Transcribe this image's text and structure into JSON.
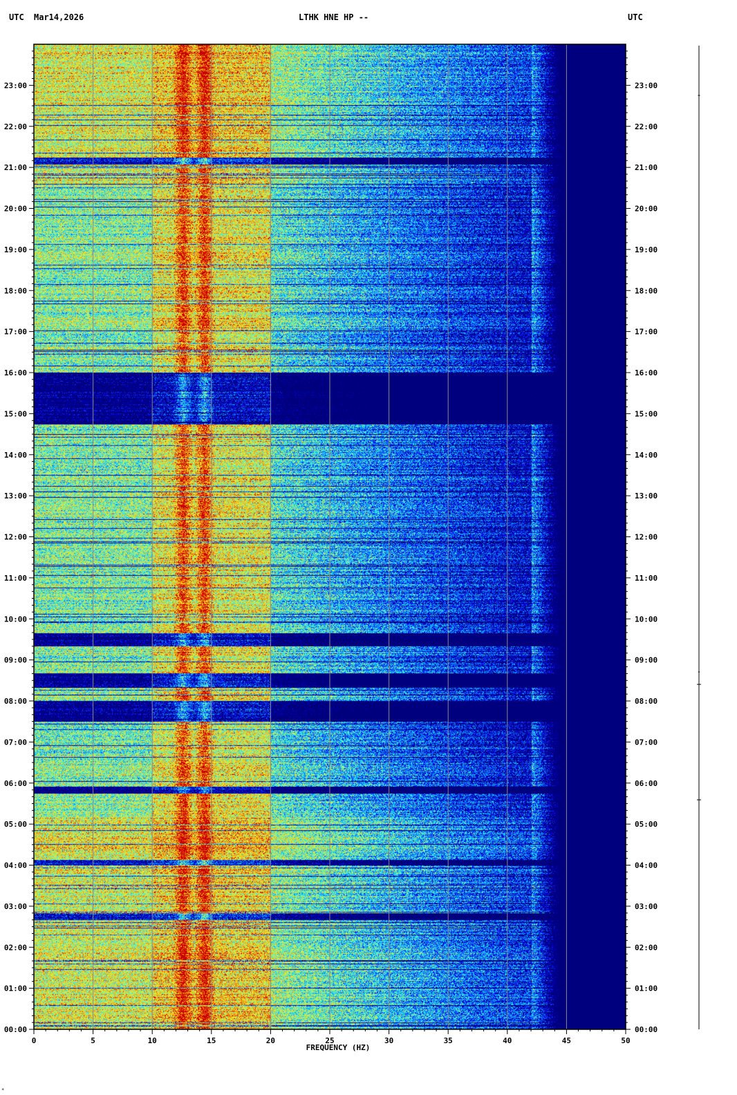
{
  "header": {
    "left_tz": "UTC",
    "date": "Mar14,2026",
    "station": "LTHK HNE HP --",
    "right_tz": "UTC"
  },
  "corner_mark": "*",
  "chart_data": {
    "type": "heatmap",
    "title": "LTHK HNE HP --",
    "xlabel": "FREQUENCY (HZ)",
    "ylabel": "",
    "xlim": [
      0,
      50
    ],
    "x_ticks": [
      0,
      5,
      10,
      15,
      20,
      25,
      30,
      35,
      40,
      45,
      50
    ],
    "y_ticks": [
      "00:00",
      "01:00",
      "02:00",
      "03:00",
      "04:00",
      "05:00",
      "06:00",
      "07:00",
      "08:00",
      "09:00",
      "10:00",
      "11:00",
      "12:00",
      "13:00",
      "14:00",
      "15:00",
      "16:00",
      "17:00",
      "18:00",
      "19:00",
      "20:00",
      "21:00",
      "22:00",
      "23:00"
    ],
    "ylim_hours": [
      0,
      24
    ],
    "grid": true,
    "colormap": [
      "#00007f",
      "#0000cc",
      "#1030ff",
      "#00a0ff",
      "#30e0f0",
      "#80f0a0",
      "#d8f040",
      "#f0d020",
      "#ff8000",
      "#c80000"
    ],
    "energy_rolloff_hz": 42,
    "spectral_lines_hz": [
      12.6,
      14.4
    ],
    "quiet_intervals_utc": [
      {
        "start": "02:40",
        "end": "02:50"
      },
      {
        "start": "04:00",
        "end": "04:08"
      },
      {
        "start": "05:45",
        "end": "05:55"
      },
      {
        "start": "07:30",
        "end": "08:00"
      },
      {
        "start": "08:20",
        "end": "08:40"
      },
      {
        "start": "09:20",
        "end": "09:40"
      },
      {
        "start": "14:45",
        "end": "16:00"
      },
      {
        "start": "21:05",
        "end": "21:15"
      }
    ]
  }
}
